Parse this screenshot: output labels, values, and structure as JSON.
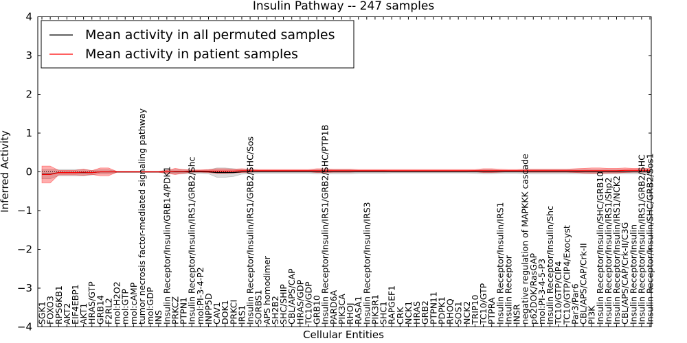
{
  "chart_data": {
    "type": "line",
    "title": "Insulin Pathway -- 247 samples",
    "xlabel": "Cellular Entities",
    "ylabel": "Inferred Activity",
    "ylim": [
      -4,
      4
    ],
    "yticks": [
      -4,
      -3,
      -2,
      -1,
      0,
      1,
      2,
      3,
      4
    ],
    "ytick_labels": [
      "−4",
      "−3",
      "−2",
      "−1",
      "0",
      "1",
      "2",
      "3",
      "4"
    ],
    "legend_position": "top-left",
    "categories": [
      "SGK1",
      "FOXO3",
      "RPS6KB1",
      "AKT2",
      "EIF4EBP1",
      "AKT1",
      "HRAS/GTP",
      "GRB14",
      "F2RL2",
      "mol:H2O2",
      "mol:GTP",
      "mol:cAMP",
      "tumor necrosis factor-mediated signaling pathway",
      "mol:GDP",
      "INS",
      "Insulin Receptor/Insulin/GRB14/PDK1",
      "PRKCZ",
      "PTPN1",
      "Insulin Receptor/Insulin/IRS1/GRB2/Shc",
      "mol:PI-3-4-P2",
      "INPP5D",
      "CAV1",
      "DOK1",
      "PRKCI",
      "IRS1",
      "Insulin Receptor/Insulin/IRS1/GRB2/SHC/Sos",
      "SORBS1",
      "APS homodimer",
      "SH2B2",
      "SHC/SHIP",
      "CBL/APS/CAP",
      "HRAS/GDP",
      "TC10/GDP",
      "GRB10",
      "Insulin Receptor/Insulin/IRS1/GRB2/SHC/PTP1B",
      "PARD6A",
      "PIK3CA",
      "RHOJ",
      "RASA1",
      "Insulin Receptor/Insulin/IRS3",
      "PIK3R1",
      "SHC1",
      "RAPGEF1",
      "CRK",
      "NCK1",
      "HRAS",
      "GRB2",
      "PTPN11",
      "PDPK1",
      "RHOQ",
      "SOS1",
      "NCK2",
      "TRIP10",
      "TC10/GTP",
      "PTPRA",
      "Insulin Receptor/Insulin/IRS1",
      "Insulin Receptor",
      "INSR",
      "negative regulation of MAPKKK cascade",
      "p62DOK/RasGAP",
      "mol:PI-3-4-5-P3",
      "Insulin Receptor/Insulin/Shc",
      "TC10/GTP/CIP4",
      "TC10/GTP/CIP4/Exocyst",
      "Par3/Par6",
      "CBL/APS/CAP/Crk-II",
      "PI3K",
      "Insulin Receptor/Insulin/SHC/GRB10",
      "Insulin Receptor/Insulin/IRS1/Shp2",
      "Insulin Receptor/Insulin/IRS1/NCK2",
      "CBL/APS/CAP/Crk-II/C3G",
      "Insulin Receptor/Insulin",
      "Insulin Receptor/Insulin/IRS1/GRB2/SHC",
      "Insulin Receptor/Insulin/SHC/GRB2/Sos1"
    ],
    "series": [
      {
        "name": "Mean activity in all permuted samples",
        "color": "#000000",
        "values": [
          -0.06,
          -0.06,
          -0.02,
          -0.02,
          -0.02,
          -0.02,
          -0.02,
          0.0,
          0.0,
          0.0,
          0.0,
          0.0,
          0.0,
          0.0,
          0.0,
          0.0,
          0.0,
          0.0,
          0.0,
          0.0,
          0.0,
          -0.02,
          -0.02,
          -0.02,
          0.0,
          0.0,
          0.0,
          0.0,
          0.0,
          0.0,
          0.0,
          0.0,
          0.0,
          0.0,
          0.0,
          0.0,
          0.0,
          0.0,
          0.0,
          0.0,
          0.0,
          0.0,
          0.0,
          0.0,
          0.0,
          0.0,
          0.0,
          0.0,
          0.0,
          0.0,
          0.0,
          0.0,
          0.0,
          0.0,
          0.0,
          0.0,
          0.0,
          0.0,
          0.0,
          0.0,
          0.0,
          0.0,
          0.0,
          0.0,
          0.0,
          0.0,
          0.0,
          0.0,
          0.0,
          0.0,
          0.0,
          0.0,
          0.0,
          0.0
        ],
        "band": [
          0.12,
          0.12,
          0.08,
          0.08,
          0.08,
          0.08,
          0.06,
          0.05,
          0.05,
          0.02,
          0.02,
          0.02,
          0.02,
          0.02,
          0.02,
          0.04,
          0.05,
          0.05,
          0.04,
          0.04,
          0.05,
          0.12,
          0.12,
          0.1,
          0.06,
          0.05,
          0.04,
          0.04,
          0.04,
          0.04,
          0.04,
          0.04,
          0.04,
          0.05,
          0.05,
          0.05,
          0.05,
          0.05,
          0.04,
          0.04,
          0.04,
          0.04,
          0.03,
          0.03,
          0.03,
          0.03,
          0.03,
          0.03,
          0.03,
          0.03,
          0.03,
          0.03,
          0.04,
          0.05,
          0.05,
          0.04,
          0.04,
          0.04,
          0.05,
          0.05,
          0.05,
          0.05,
          0.05,
          0.05,
          0.05,
          0.05,
          0.05,
          0.05,
          0.05,
          0.05,
          0.05,
          0.05,
          0.05,
          0.05
        ]
      },
      {
        "name": "Mean activity in patient samples",
        "color": "#ff0000",
        "values": [
          -0.07,
          -0.07,
          -0.02,
          -0.02,
          -0.02,
          -0.01,
          -0.02,
          0.0,
          0.0,
          0.0,
          0.0,
          0.0,
          0.0,
          0.0,
          0.0,
          0.0,
          0.01,
          0.01,
          0.02,
          0.02,
          0.02,
          0.02,
          0.02,
          0.02,
          0.03,
          0.03,
          0.03,
          0.03,
          0.03,
          0.03,
          0.03,
          0.03,
          0.03,
          0.03,
          0.03,
          0.03,
          0.03,
          0.03,
          0.03,
          0.03,
          0.03,
          0.03,
          0.03,
          0.03,
          0.03,
          0.03,
          0.03,
          0.03,
          0.03,
          0.03,
          0.03,
          0.03,
          0.03,
          0.03,
          0.03,
          0.03,
          0.03,
          0.03,
          0.03,
          0.03,
          0.03,
          0.03,
          0.03,
          0.03,
          0.03,
          0.03,
          0.03,
          0.03,
          0.03,
          0.03,
          0.04,
          0.04,
          0.04,
          0.04
        ],
        "band": [
          0.22,
          0.22,
          0.06,
          0.06,
          0.06,
          0.08,
          0.05,
          0.1,
          0.1,
          0.01,
          0.01,
          0.01,
          0.01,
          0.01,
          0.01,
          0.04,
          0.08,
          0.05,
          0.03,
          0.03,
          0.04,
          0.06,
          0.06,
          0.05,
          0.05,
          0.04,
          0.03,
          0.03,
          0.03,
          0.03,
          0.03,
          0.03,
          0.03,
          0.05,
          0.05,
          0.04,
          0.04,
          0.04,
          0.03,
          0.03,
          0.03,
          0.03,
          0.03,
          0.03,
          0.03,
          0.03,
          0.03,
          0.03,
          0.03,
          0.03,
          0.03,
          0.03,
          0.03,
          0.05,
          0.05,
          0.04,
          0.03,
          0.03,
          0.04,
          0.04,
          0.04,
          0.04,
          0.04,
          0.04,
          0.05,
          0.06,
          0.07,
          0.07,
          0.06,
          0.06,
          0.06,
          0.05,
          0.05,
          0.05
        ]
      }
    ],
    "reference_line": {
      "y": 0,
      "style": "dotted"
    }
  }
}
